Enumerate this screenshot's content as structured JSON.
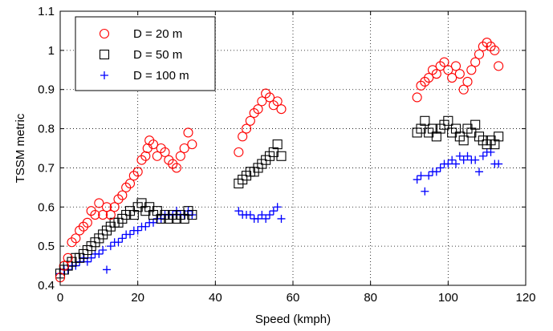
{
  "chart_data": {
    "type": "scatter",
    "xlabel": "Speed (kmph)",
    "ylabel": "TSSM metric",
    "xlim": [
      0,
      120
    ],
    "ylim": [
      0.4,
      1.1
    ],
    "xticks": [
      0,
      20,
      40,
      60,
      80,
      100,
      120
    ],
    "yticks": [
      0.4,
      0.5,
      0.6,
      0.7,
      0.8,
      0.9,
      1,
      1.1
    ],
    "xtick_labels": [
      "0",
      "20",
      "40",
      "60",
      "80",
      "100",
      "120"
    ],
    "ytick_labels": [
      "0.4",
      "0.5",
      "0.6",
      "0.7",
      "0.8",
      "0.9",
      "1",
      "1.1"
    ],
    "grid": true,
    "legend_position": "top-left",
    "series": [
      {
        "name": "D = 20 m",
        "marker": "circle",
        "color": "#ff0000",
        "points": [
          [
            0,
            0.42
          ],
          [
            1,
            0.45
          ],
          [
            2,
            0.47
          ],
          [
            3,
            0.51
          ],
          [
            4,
            0.52
          ],
          [
            5,
            0.54
          ],
          [
            6,
            0.55
          ],
          [
            7,
            0.56
          ],
          [
            8,
            0.59
          ],
          [
            9,
            0.58
          ],
          [
            10,
            0.61
          ],
          [
            11,
            0.58
          ],
          [
            12,
            0.6
          ],
          [
            13,
            0.58
          ],
          [
            14,
            0.6
          ],
          [
            15,
            0.62
          ],
          [
            16,
            0.63
          ],
          [
            17,
            0.65
          ],
          [
            18,
            0.66
          ],
          [
            19,
            0.68
          ],
          [
            20,
            0.69
          ],
          [
            21,
            0.72
          ],
          [
            22,
            0.73
          ],
          [
            22.5,
            0.75
          ],
          [
            23,
            0.77
          ],
          [
            24,
            0.76
          ],
          [
            25,
            0.73
          ],
          [
            26,
            0.75
          ],
          [
            27,
            0.74
          ],
          [
            28,
            0.72
          ],
          [
            29,
            0.71
          ],
          [
            30,
            0.7
          ],
          [
            31,
            0.73
          ],
          [
            32,
            0.75
          ],
          [
            33,
            0.79
          ],
          [
            34,
            0.76
          ],
          [
            46,
            0.74
          ],
          [
            47,
            0.78
          ],
          [
            48,
            0.8
          ],
          [
            49,
            0.82
          ],
          [
            50,
            0.84
          ],
          [
            51,
            0.85
          ],
          [
            52,
            0.87
          ],
          [
            53,
            0.89
          ],
          [
            54,
            0.88
          ],
          [
            55,
            0.86
          ],
          [
            56,
            0.87
          ],
          [
            57,
            0.85
          ],
          [
            92,
            0.88
          ],
          [
            93,
            0.91
          ],
          [
            94,
            0.92
          ],
          [
            95,
            0.93
          ],
          [
            96,
            0.95
          ],
          [
            97,
            0.94
          ],
          [
            98,
            0.96
          ],
          [
            99,
            0.97
          ],
          [
            100,
            0.95
          ],
          [
            101,
            0.93
          ],
          [
            102,
            0.96
          ],
          [
            103,
            0.94
          ],
          [
            104,
            0.9
          ],
          [
            105,
            0.92
          ],
          [
            106,
            0.95
          ],
          [
            107,
            0.97
          ],
          [
            108,
            0.99
          ],
          [
            109,
            1.01
          ],
          [
            110,
            1.02
          ],
          [
            111,
            1.01
          ],
          [
            112,
            1.0
          ],
          [
            113,
            0.96
          ]
        ]
      },
      {
        "name": "D = 50 m",
        "marker": "square",
        "color": "#000000",
        "points": [
          [
            0,
            0.43
          ],
          [
            1,
            0.44
          ],
          [
            2,
            0.45
          ],
          [
            3,
            0.46
          ],
          [
            4,
            0.47
          ],
          [
            5,
            0.47
          ],
          [
            6,
            0.48
          ],
          [
            7,
            0.49
          ],
          [
            8,
            0.5
          ],
          [
            9,
            0.51
          ],
          [
            10,
            0.52
          ],
          [
            11,
            0.53
          ],
          [
            12,
            0.54
          ],
          [
            13,
            0.55
          ],
          [
            14,
            0.56
          ],
          [
            15,
            0.56
          ],
          [
            16,
            0.57
          ],
          [
            17,
            0.58
          ],
          [
            18,
            0.59
          ],
          [
            19,
            0.58
          ],
          [
            20,
            0.6
          ],
          [
            21,
            0.61
          ],
          [
            22,
            0.59
          ],
          [
            23,
            0.6
          ],
          [
            24,
            0.58
          ],
          [
            25,
            0.59
          ],
          [
            26,
            0.57
          ],
          [
            27,
            0.58
          ],
          [
            28,
            0.57
          ],
          [
            29,
            0.58
          ],
          [
            30,
            0.57
          ],
          [
            31,
            0.58
          ],
          [
            32,
            0.57
          ],
          [
            33,
            0.59
          ],
          [
            34,
            0.58
          ],
          [
            46,
            0.66
          ],
          [
            47,
            0.67
          ],
          [
            48,
            0.68
          ],
          [
            49,
            0.69
          ],
          [
            50,
            0.69
          ],
          [
            51,
            0.7
          ],
          [
            52,
            0.71
          ],
          [
            53,
            0.72
          ],
          [
            54,
            0.73
          ],
          [
            55,
            0.74
          ],
          [
            56,
            0.76
          ],
          [
            57,
            0.73
          ],
          [
            92,
            0.79
          ],
          [
            93,
            0.8
          ],
          [
            94,
            0.82
          ],
          [
            95,
            0.79
          ],
          [
            96,
            0.8
          ],
          [
            97,
            0.78
          ],
          [
            98,
            0.8
          ],
          [
            99,
            0.81
          ],
          [
            100,
            0.82
          ],
          [
            101,
            0.79
          ],
          [
            102,
            0.8
          ],
          [
            103,
            0.78
          ],
          [
            104,
            0.77
          ],
          [
            105,
            0.8
          ],
          [
            106,
            0.79
          ],
          [
            107,
            0.81
          ],
          [
            108,
            0.78
          ],
          [
            109,
            0.77
          ],
          [
            110,
            0.76
          ],
          [
            111,
            0.77
          ],
          [
            112,
            0.76
          ],
          [
            113,
            0.78
          ]
        ]
      },
      {
        "name": "D = 100 m",
        "marker": "plus",
        "color": "#0000ff",
        "points": [
          [
            0,
            0.43
          ],
          [
            1,
            0.44
          ],
          [
            2,
            0.44
          ],
          [
            3,
            0.45
          ],
          [
            4,
            0.45
          ],
          [
            5,
            0.46
          ],
          [
            6,
            0.47
          ],
          [
            7,
            0.46
          ],
          [
            8,
            0.47
          ],
          [
            9,
            0.48
          ],
          [
            10,
            0.48
          ],
          [
            11,
            0.49
          ],
          [
            12,
            0.44
          ],
          [
            13,
            0.5
          ],
          [
            14,
            0.51
          ],
          [
            15,
            0.51
          ],
          [
            16,
            0.52
          ],
          [
            17,
            0.53
          ],
          [
            18,
            0.53
          ],
          [
            19,
            0.54
          ],
          [
            20,
            0.54
          ],
          [
            21,
            0.55
          ],
          [
            22,
            0.55
          ],
          [
            23,
            0.56
          ],
          [
            24,
            0.56
          ],
          [
            25,
            0.57
          ],
          [
            26,
            0.57
          ],
          [
            27,
            0.58
          ],
          [
            28,
            0.58
          ],
          [
            29,
            0.58
          ],
          [
            30,
            0.59
          ],
          [
            31,
            0.58
          ],
          [
            32,
            0.58
          ],
          [
            33,
            0.59
          ],
          [
            34,
            0.58
          ],
          [
            46,
            0.59
          ],
          [
            47,
            0.58
          ],
          [
            48,
            0.58
          ],
          [
            49,
            0.58
          ],
          [
            50,
            0.57
          ],
          [
            51,
            0.57
          ],
          [
            52,
            0.58
          ],
          [
            53,
            0.57
          ],
          [
            54,
            0.58
          ],
          [
            55,
            0.59
          ],
          [
            56,
            0.6
          ],
          [
            57,
            0.57
          ],
          [
            92,
            0.67
          ],
          [
            93,
            0.68
          ],
          [
            94,
            0.64
          ],
          [
            95,
            0.68
          ],
          [
            96,
            0.69
          ],
          [
            97,
            0.69
          ],
          [
            98,
            0.7
          ],
          [
            99,
            0.71
          ],
          [
            100,
            0.71
          ],
          [
            101,
            0.72
          ],
          [
            102,
            0.71
          ],
          [
            103,
            0.73
          ],
          [
            104,
            0.72
          ],
          [
            105,
            0.73
          ],
          [
            106,
            0.72
          ],
          [
            107,
            0.72
          ],
          [
            108,
            0.69
          ],
          [
            109,
            0.73
          ],
          [
            110,
            0.74
          ],
          [
            111,
            0.74
          ],
          [
            112,
            0.71
          ],
          [
            113,
            0.71
          ]
        ]
      }
    ]
  }
}
